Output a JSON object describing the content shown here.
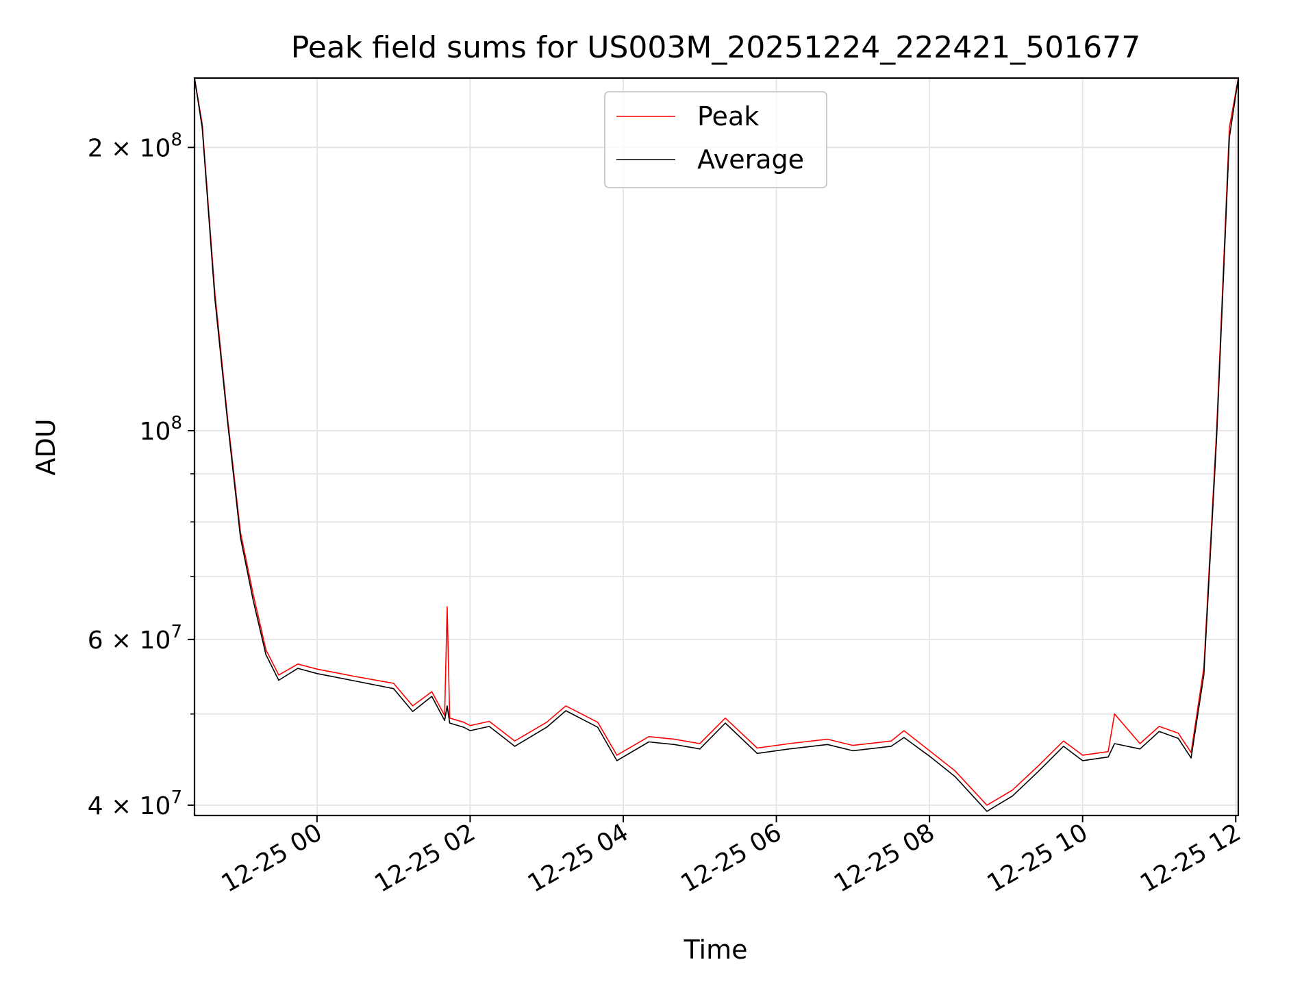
{
  "chart_data": {
    "type": "line",
    "title": "Peak field sums for US003M_20251224_222421_501677",
    "xlabel": "Time",
    "ylabel": "ADU",
    "y_scale": "log",
    "ylim": [
      39000000,
      237000000
    ],
    "xlim": [
      "2025-12-24 22:24",
      "2025-12-25 12:02"
    ],
    "grid": true,
    "legend_position": "upper center",
    "x_ticks": [
      {
        "label": "12-25 00",
        "value": "2025-12-25 00:00"
      },
      {
        "label": "12-25 02",
        "value": "2025-12-25 02:00"
      },
      {
        "label": "12-25 04",
        "value": "2025-12-25 04:00"
      },
      {
        "label": "12-25 06",
        "value": "2025-12-25 06:00"
      },
      {
        "label": "12-25 08",
        "value": "2025-12-25 08:00"
      },
      {
        "label": "12-25 10",
        "value": "2025-12-25 10:00"
      },
      {
        "label": "12-25 12",
        "value": "2025-12-25 12:00"
      }
    ],
    "y_ticks": [
      {
        "base": "4 × 10",
        "exp": "7",
        "value": 40000000
      },
      {
        "base": "6 × 10",
        "exp": "7",
        "value": 60000000
      },
      {
        "base": "10",
        "exp": "8",
        "value": 100000000
      },
      {
        "base": "2 × 10",
        "exp": "8",
        "value": 200000000
      }
    ],
    "y_minor_ticks": [
      50000000,
      70000000,
      80000000,
      90000000
    ],
    "series": [
      {
        "name": "Peak",
        "color": "#ff0000",
        "points": [
          [
            "2025-12-24 22:24",
            237000000
          ],
          [
            "2025-12-24 22:30",
            212000000
          ],
          [
            "2025-12-24 22:40",
            140000000
          ],
          [
            "2025-12-24 22:50",
            103000000
          ],
          [
            "2025-12-24 23:00",
            78000000
          ],
          [
            "2025-12-24 23:10",
            67000000
          ],
          [
            "2025-12-24 23:20",
            58500000
          ],
          [
            "2025-12-24 23:30",
            55000000
          ],
          [
            "2025-12-24 23:45",
            56500000
          ],
          [
            "2025-12-25 00:00",
            55800000
          ],
          [
            "2025-12-25 00:30",
            54800000
          ],
          [
            "2025-12-25 01:00",
            53900000
          ],
          [
            "2025-12-25 01:15",
            51000000
          ],
          [
            "2025-12-25 01:30",
            52800000
          ],
          [
            "2025-12-25 01:40",
            49800000
          ],
          [
            "2025-12-25 01:42",
            65000000
          ],
          [
            "2025-12-25 01:44",
            49500000
          ],
          [
            "2025-12-25 01:55",
            49000000
          ],
          [
            "2025-12-25 02:00",
            48600000
          ],
          [
            "2025-12-25 02:15",
            49100000
          ],
          [
            "2025-12-25 02:35",
            46800000
          ],
          [
            "2025-12-25 03:00",
            49000000
          ],
          [
            "2025-12-25 03:15",
            51000000
          ],
          [
            "2025-12-25 03:40",
            49000000
          ],
          [
            "2025-12-25 03:55",
            45200000
          ],
          [
            "2025-12-25 04:20",
            47300000
          ],
          [
            "2025-12-25 04:40",
            47000000
          ],
          [
            "2025-12-25 05:00",
            46500000
          ],
          [
            "2025-12-25 05:20",
            49500000
          ],
          [
            "2025-12-25 05:45",
            46000000
          ],
          [
            "2025-12-25 06:10",
            46500000
          ],
          [
            "2025-12-25 06:40",
            47000000
          ],
          [
            "2025-12-25 07:00",
            46300000
          ],
          [
            "2025-12-25 07:30",
            46800000
          ],
          [
            "2025-12-25 07:40",
            48000000
          ],
          [
            "2025-12-25 08:00",
            45700000
          ],
          [
            "2025-12-25 08:20",
            43500000
          ],
          [
            "2025-12-25 08:45",
            40000000
          ],
          [
            "2025-12-25 09:05",
            41500000
          ],
          [
            "2025-12-25 09:25",
            44000000
          ],
          [
            "2025-12-25 09:45",
            46800000
          ],
          [
            "2025-12-25 10:00",
            45200000
          ],
          [
            "2025-12-25 10:20",
            45600000
          ],
          [
            "2025-12-25 10:25",
            50000000
          ],
          [
            "2025-12-25 10:45",
            46500000
          ],
          [
            "2025-12-25 11:00",
            48500000
          ],
          [
            "2025-12-25 11:15",
            47700000
          ],
          [
            "2025-12-25 11:25",
            45500000
          ],
          [
            "2025-12-25 11:35",
            56000000
          ],
          [
            "2025-12-25 11:45",
            100000000
          ],
          [
            "2025-12-25 11:55",
            210000000
          ],
          [
            "2025-12-25 12:02",
            237000000
          ]
        ]
      },
      {
        "name": "Average",
        "color": "#000000",
        "points": [
          [
            "2025-12-24 22:24",
            237000000
          ],
          [
            "2025-12-24 22:30",
            210000000
          ],
          [
            "2025-12-24 22:40",
            138000000
          ],
          [
            "2025-12-24 22:50",
            102000000
          ],
          [
            "2025-12-24 23:00",
            77000000
          ],
          [
            "2025-12-24 23:10",
            66000000
          ],
          [
            "2025-12-24 23:20",
            57800000
          ],
          [
            "2025-12-24 23:30",
            54300000
          ],
          [
            "2025-12-24 23:45",
            55900000
          ],
          [
            "2025-12-25 00:00",
            55200000
          ],
          [
            "2025-12-25 00:30",
            54200000
          ],
          [
            "2025-12-25 01:00",
            53200000
          ],
          [
            "2025-12-25 01:15",
            50300000
          ],
          [
            "2025-12-25 01:30",
            52200000
          ],
          [
            "2025-12-25 01:40",
            49200000
          ],
          [
            "2025-12-25 01:42",
            51000000
          ],
          [
            "2025-12-25 01:44",
            48900000
          ],
          [
            "2025-12-25 01:55",
            48400000
          ],
          [
            "2025-12-25 02:00",
            48000000
          ],
          [
            "2025-12-25 02:15",
            48500000
          ],
          [
            "2025-12-25 02:35",
            46200000
          ],
          [
            "2025-12-25 03:00",
            48400000
          ],
          [
            "2025-12-25 03:15",
            50400000
          ],
          [
            "2025-12-25 03:40",
            48400000
          ],
          [
            "2025-12-25 03:55",
            44600000
          ],
          [
            "2025-12-25 04:20",
            46700000
          ],
          [
            "2025-12-25 04:40",
            46400000
          ],
          [
            "2025-12-25 05:00",
            45900000
          ],
          [
            "2025-12-25 05:20",
            48900000
          ],
          [
            "2025-12-25 05:45",
            45400000
          ],
          [
            "2025-12-25 06:10",
            45900000
          ],
          [
            "2025-12-25 06:40",
            46400000
          ],
          [
            "2025-12-25 07:00",
            45700000
          ],
          [
            "2025-12-25 07:30",
            46200000
          ],
          [
            "2025-12-25 07:40",
            47200000
          ],
          [
            "2025-12-25 08:00",
            45100000
          ],
          [
            "2025-12-25 08:20",
            42900000
          ],
          [
            "2025-12-25 08:45",
            39400000
          ],
          [
            "2025-12-25 09:05",
            40900000
          ],
          [
            "2025-12-25 09:25",
            43400000
          ],
          [
            "2025-12-25 09:45",
            46200000
          ],
          [
            "2025-12-25 10:00",
            44600000
          ],
          [
            "2025-12-25 10:20",
            45000000
          ],
          [
            "2025-12-25 10:25",
            46500000
          ],
          [
            "2025-12-25 10:45",
            45900000
          ],
          [
            "2025-12-25 11:00",
            47900000
          ],
          [
            "2025-12-25 11:15",
            47100000
          ],
          [
            "2025-12-25 11:25",
            44900000
          ],
          [
            "2025-12-25 11:35",
            55000000
          ],
          [
            "2025-12-25 11:45",
            98000000
          ],
          [
            "2025-12-25 11:55",
            205000000
          ],
          [
            "2025-12-25 12:02",
            237000000
          ]
        ]
      }
    ]
  }
}
